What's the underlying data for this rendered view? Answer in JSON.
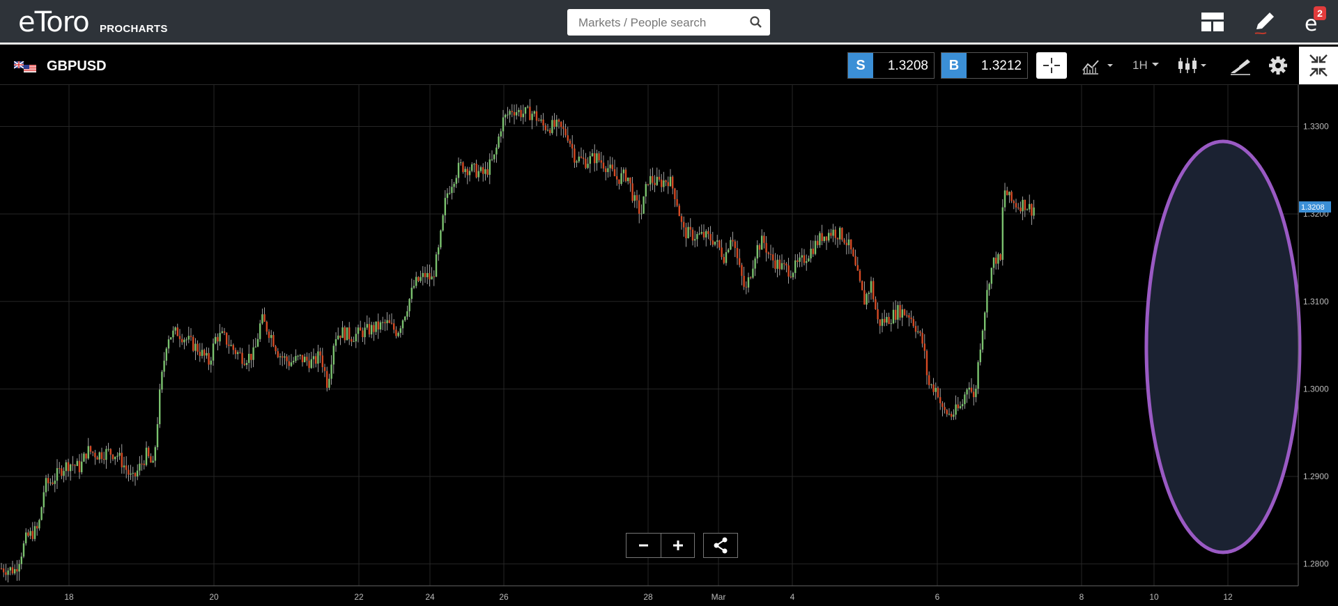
{
  "header": {
    "logo_text": "eToro",
    "logo_sub": "PROCHARTS",
    "search_placeholder": "Markets / People search",
    "notification_count": "2",
    "icons": [
      "layout-icon",
      "pencil-icon",
      "etoro-profile-icon"
    ]
  },
  "instrument": {
    "flag": "uk-us-flag-icon",
    "name": "GBPUSD",
    "sell_label": "S",
    "sell_price": "1.3208",
    "buy_label": "B",
    "buy_price": "1.3212",
    "timeframe": "1H",
    "toolbar_icons": [
      "crosshair-icon",
      "indicators-icon",
      "candles-icon",
      "drawing-icon",
      "gear-icon",
      "collapse-icon"
    ]
  },
  "colors": {
    "up": "#7bc26f",
    "down": "#d64a24",
    "accent": "#3b8fd6",
    "highlight_ellipse": "#9a5ac4"
  },
  "chart_data": {
    "type": "candlestick",
    "symbol": "GBPUSD",
    "interval": "1H",
    "current_price": "1.3208",
    "ylim": [
      1.2775,
      1.3345
    ],
    "y_ticks": [
      "1.3300",
      "1.3200",
      "1.3100",
      "1.3000",
      "1.2900",
      "1.2800"
    ],
    "x_ticks": [
      "18",
      "20",
      "22",
      "24",
      "26",
      "28",
      "Mar",
      "4",
      "6",
      "8",
      "10",
      "12"
    ],
    "grid": true,
    "close_path": [
      [
        0,
        1.2795
      ],
      [
        22,
        1.2793
      ],
      [
        38,
        1.283
      ],
      [
        55,
        1.284
      ],
      [
        64,
        1.289
      ],
      [
        75,
        1.2895
      ],
      [
        90,
        1.291
      ],
      [
        100,
        1.2915
      ],
      [
        115,
        1.291
      ],
      [
        125,
        1.293
      ],
      [
        140,
        1.2925
      ],
      [
        155,
        1.2928
      ],
      [
        168,
        1.2925
      ],
      [
        180,
        1.291
      ],
      [
        190,
        1.2895
      ],
      [
        210,
        1.2925
      ],
      [
        220,
        1.291
      ],
      [
        230,
        1.3
      ],
      [
        240,
        1.306
      ],
      [
        255,
        1.3065
      ],
      [
        270,
        1.3055
      ],
      [
        285,
        1.3045
      ],
      [
        300,
        1.303
      ],
      [
        310,
        1.306
      ],
      [
        320,
        1.306
      ],
      [
        335,
        1.3045
      ],
      [
        350,
        1.3035
      ],
      [
        365,
        1.304
      ],
      [
        375,
        1.308
      ],
      [
        390,
        1.306
      ],
      [
        400,
        1.304
      ],
      [
        415,
        1.303
      ],
      [
        430,
        1.3035
      ],
      [
        450,
        1.303
      ],
      [
        460,
        1.304
      ],
      [
        470,
        1.3005
      ],
      [
        480,
        1.306
      ],
      [
        490,
        1.3065
      ],
      [
        505,
        1.306
      ],
      [
        520,
        1.3065
      ],
      [
        540,
        1.307
      ],
      [
        555,
        1.3075
      ],
      [
        570,
        1.3065
      ],
      [
        580,
        1.3085
      ],
      [
        595,
        1.312
      ],
      [
        610,
        1.313
      ],
      [
        620,
        1.3125
      ],
      [
        630,
        1.316
      ],
      [
        640,
        1.322
      ],
      [
        650,
        1.324
      ],
      [
        660,
        1.3255
      ],
      [
        680,
        1.325
      ],
      [
        695,
        1.3245
      ],
      [
        710,
        1.3265
      ],
      [
        720,
        1.3305
      ],
      [
        735,
        1.332
      ],
      [
        750,
        1.3315
      ],
      [
        765,
        1.3315
      ],
      [
        780,
        1.33
      ],
      [
        800,
        1.33
      ],
      [
        815,
        1.329
      ],
      [
        825,
        1.3265
      ],
      [
        840,
        1.326
      ],
      [
        855,
        1.3265
      ],
      [
        870,
        1.3255
      ],
      [
        885,
        1.324
      ],
      [
        900,
        1.3245
      ],
      [
        910,
        1.3215
      ],
      [
        920,
        1.32
      ],
      [
        930,
        1.324
      ],
      [
        945,
        1.3235
      ],
      [
        960,
        1.324
      ],
      [
        970,
        1.322
      ],
      [
        980,
        1.318
      ],
      [
        995,
        1.3175
      ],
      [
        1010,
        1.3175
      ],
      [
        1025,
        1.317
      ],
      [
        1040,
        1.315
      ],
      [
        1050,
        1.318
      ],
      [
        1060,
        1.314
      ],
      [
        1070,
        1.311
      ],
      [
        1085,
        1.316
      ],
      [
        1095,
        1.317
      ],
      [
        1105,
        1.315
      ],
      [
        1120,
        1.314
      ],
      [
        1135,
        1.3135
      ],
      [
        1150,
        1.3145
      ],
      [
        1165,
        1.316
      ],
      [
        1180,
        1.3175
      ],
      [
        1195,
        1.318
      ],
      [
        1210,
        1.3175
      ],
      [
        1220,
        1.316
      ],
      [
        1230,
        1.313
      ],
      [
        1240,
        1.31
      ],
      [
        1250,
        1.312
      ],
      [
        1260,
        1.3075
      ],
      [
        1275,
        1.308
      ],
      [
        1290,
        1.309
      ],
      [
        1305,
        1.3085
      ],
      [
        1315,
        1.307
      ],
      [
        1325,
        1.305
      ],
      [
        1332,
        1.3005
      ],
      [
        1345,
        1.3
      ],
      [
        1352,
        1.2975
      ],
      [
        1365,
        1.297
      ],
      [
        1380,
        1.298
      ],
      [
        1390,
        1.301
      ],
      [
        1398,
        1.2985
      ],
      [
        1405,
        1.304
      ],
      [
        1412,
        1.3085
      ],
      [
        1420,
        1.313
      ],
      [
        1428,
        1.315
      ],
      [
        1436,
        1.3145
      ],
      [
        1440,
        1.323
      ],
      [
        1450,
        1.3215
      ],
      [
        1460,
        1.321
      ],
      [
        1470,
        1.3212
      ],
      [
        1480,
        1.3205
      ],
      [
        1484,
        1.3208
      ]
    ]
  }
}
